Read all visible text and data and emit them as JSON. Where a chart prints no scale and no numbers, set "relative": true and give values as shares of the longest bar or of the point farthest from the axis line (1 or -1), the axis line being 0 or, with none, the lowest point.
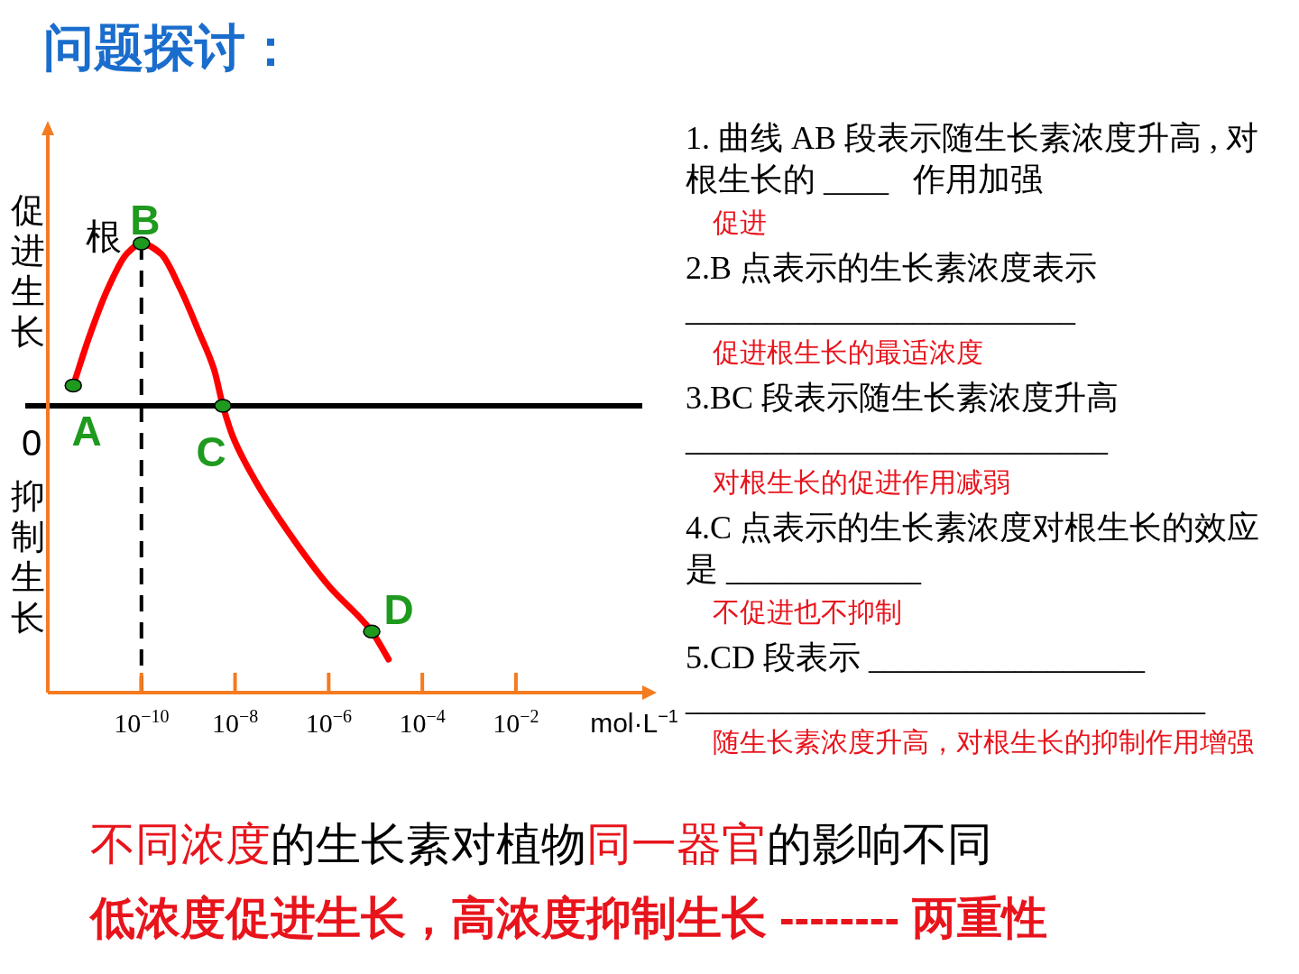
{
  "chart_data": [
    {
      "type": "line",
      "title": "问题探讨：",
      "xlabel": "mol·L$^{−1}$",
      "log": "x",
      "xlim": [
        1e-12,
        5
      ],
      "xticks": [
        {
          "value": 1e-10,
          "label": "10$^{−10}$"
        },
        {
          "value": 1e-08,
          "label": "10$^{−8}$"
        },
        {
          "value": 1e-06,
          "label": "10$^{−6}$"
        },
        {
          "value": 0.0001,
          "label": "10$^{−4}$"
        },
        {
          "value": 0.01,
          "label": "10$^{−2}$"
        }
      ],
      "relative": true,
      "line_style": "solid",
      "series": [
        {
          "name": "根",
          "color": "#ff0000",
          "x": [
            3.5e-12,
            7.6e-12,
            1.9e-11,
            4.9e-11,
            1e-10,
            2.6e-10,
            6.8e-10,
            1.7e-09,
            3.6e-09,
            5.5e-09,
            8.9e-09,
            2.6e-08,
            1.4e-07,
            1e-06,
            8.3e-06,
            1.9e-05
          ],
          "values": [
            0.08,
            0.27,
            0.46,
            0.6,
            0.64,
            0.6,
            0.46,
            0.29,
            0.14,
            0,
            -0.12,
            -0.29,
            -0.5,
            -0.71,
            -0.89,
            -1
          ]
        },
        {
          "type": "scatter",
          "color": "#1e9a1e",
          "marker": "circle",
          "x": [
            3.5e-12,
            1e-10,
            5.5e-09,
            8.3e-06
          ],
          "values": [
            0.08,
            0.64,
            0,
            -0.89
          ]
        }
      ],
      "ref_lines": [
        {
          "axis": "x",
          "value": 1e-10,
          "color": "#000000",
          "line_style": "dashed"
        }
      ],
      "annotations": [
        "促进生长",
        "0",
        "抑制生长",
        {
          "text": "A",
          "x": 3.5e-12,
          "y": 0.08
        },
        {
          "text": "B",
          "x": 1e-10,
          "y": 0.64
        },
        {
          "text": "C",
          "x": 5.5e-09,
          "y": 0
        },
        {
          "text": "D",
          "x": 8.3e-06,
          "y": -0.89
        }
      ]
    },
    {
      "type": "other",
      "annotations": [
        "1. 曲线 AB 段表示随生长素浓度升高 , 对根生长的 ____   作用加强",
        "促进",
        "2.B 点表示的生长素浓度表示 ________________________",
        "促进根生长的最适浓度",
        "3.BC 段表示随生长素浓度升高 __________________________",
        "对根生长的促进作用减弱",
        "4.C 点表示的生长素浓度对根生长的效应是 ____________",
        "不促进也不抑制",
        "5.CD 段表示 _________________ ________________________________",
        "随生长素浓度升高，对根生长的抑制作用增强",
        "不同浓度",
        "的生长素对植物",
        "同一器官",
        "的影响不同",
        "低浓度促进生长，高浓度抑制生长 -------- 两重性"
      ]
    }
  ]
}
